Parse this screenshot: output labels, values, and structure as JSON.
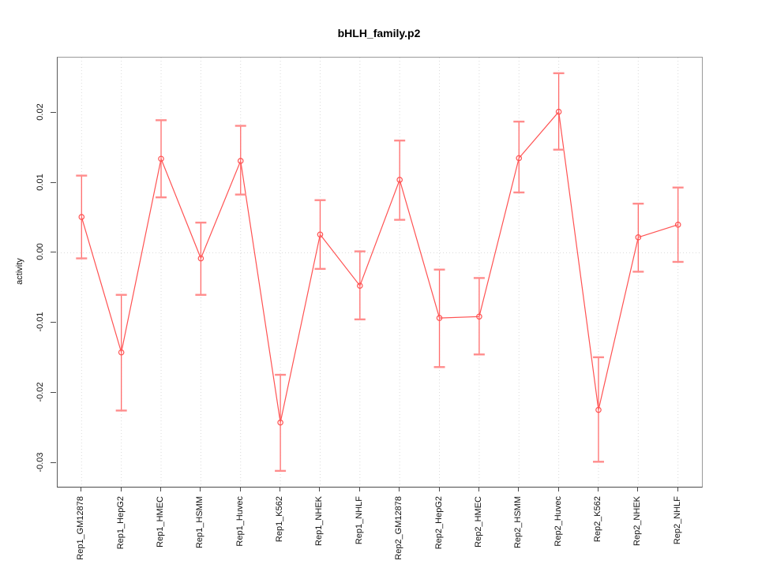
{
  "chart_data": {
    "type": "line",
    "title": "bHLH_family.p2",
    "xlabel": "",
    "ylabel": "activity",
    "legend": "none",
    "grid": {
      "vertical": "dotted at every category",
      "horizontal": "dotted at y=0"
    },
    "ylim": [
      -0.0334,
      0.0278
    ],
    "y_ticks": {
      "values": [
        0.02,
        0.01,
        0.0,
        -0.01,
        -0.02,
        -0.03
      ],
      "labels": [
        "0.02",
        "0.01",
        "0.00",
        "-0.01",
        "-0.02",
        "-0.03"
      ]
    },
    "categories": [
      "Rep1_GM12878",
      "Rep1_HepG2",
      "Rep1_HMEC",
      "Rep1_HSMM",
      "Rep1_Huvec",
      "Rep1_K562",
      "Rep1_NHEK",
      "Rep1_NHLF",
      "Rep2_GM12878",
      "Rep2_HepG2",
      "Rep2_HMEC",
      "Rep2_HSMM",
      "Rep2_Huvec",
      "Rep2_K562",
      "Rep2_NHEK",
      "Rep2_NHLF"
    ],
    "series": [
      {
        "name": "activity",
        "marker": "open-circle",
        "values": [
          0.0051,
          -0.0142,
          0.0134,
          -0.0008,
          0.0131,
          -0.0242,
          0.0026,
          -0.0047,
          0.0104,
          -0.0093,
          -0.0091,
          0.0135,
          0.0201,
          -0.0224,
          0.0022,
          0.004
        ],
        "upper": [
          0.011,
          -0.006,
          0.0189,
          0.0043,
          0.0181,
          -0.0174,
          0.0075,
          0.0002,
          0.016,
          -0.0024,
          -0.0036,
          0.0187,
          0.0256,
          -0.0149,
          0.007,
          0.0093
        ],
        "lower": [
          -0.0008,
          -0.0225,
          0.0079,
          -0.006,
          0.0083,
          -0.0311,
          -0.0023,
          -0.0095,
          0.0047,
          -0.0163,
          -0.0145,
          0.0086,
          0.0147,
          -0.0298,
          -0.0027,
          -0.0013
        ]
      }
    ],
    "colors": {
      "series": "#ff5252",
      "error_line": "#ff6b6b",
      "error_cap": "#ff8c8c",
      "grid": "#dadada",
      "axis": "#4a4a4a",
      "text": "#111111"
    }
  }
}
